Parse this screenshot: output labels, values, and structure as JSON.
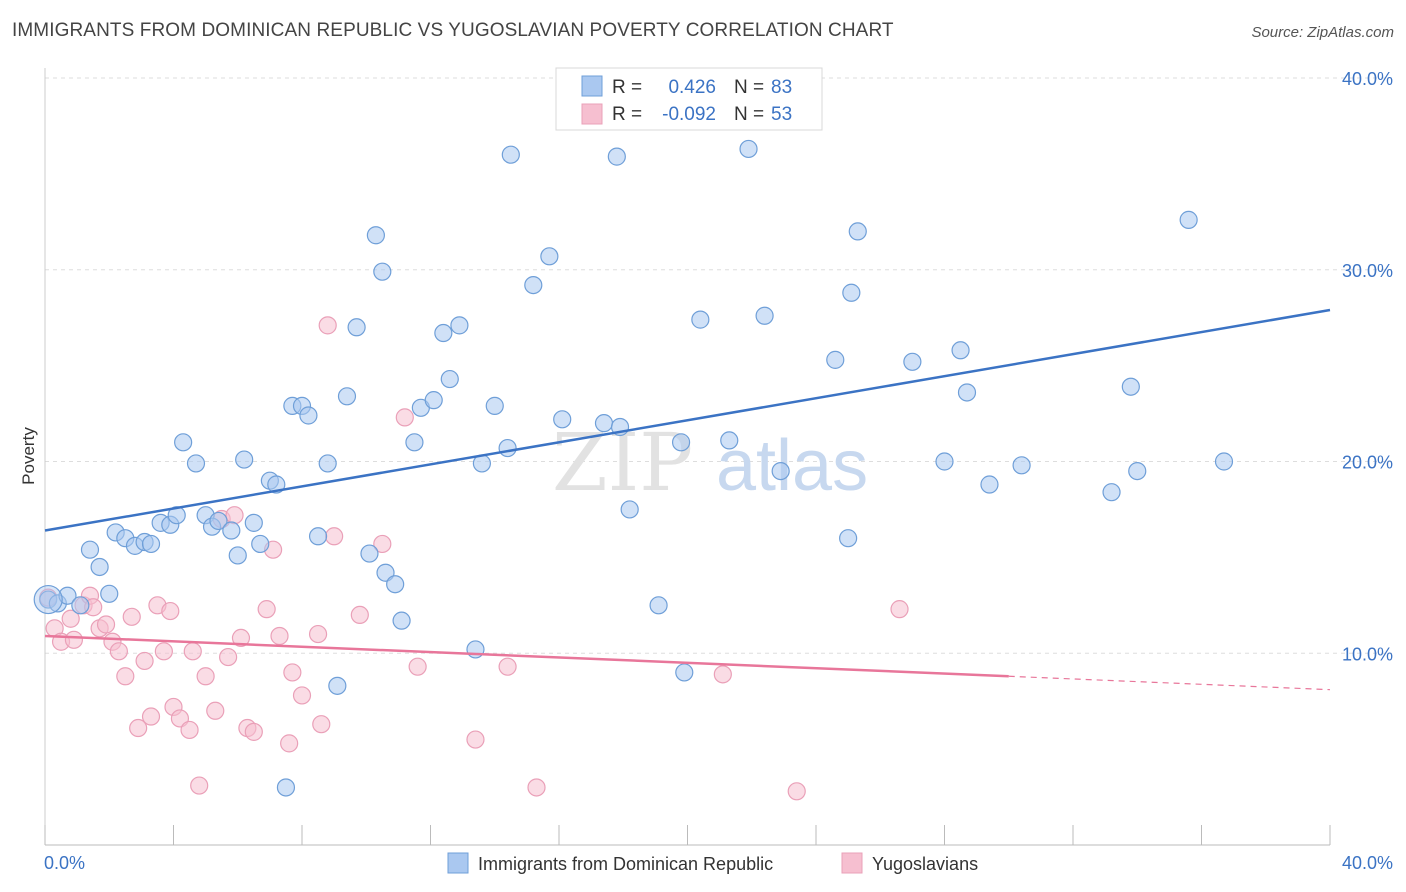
{
  "title": "IMMIGRANTS FROM DOMINICAN REPUBLIC VS YUGOSLAVIAN POVERTY CORRELATION CHART",
  "source": "Source: ZipAtlas.com",
  "watermark": {
    "zip": "ZIP",
    "atlas": "atlas"
  },
  "colors": {
    "blue": "#3b73c4",
    "blue_fill": "#aac8f0",
    "blue_stroke": "#6f9fd8",
    "pink": "#e8769a",
    "pink_fill": "#f6bfd0",
    "pink_stroke": "#eaa0b8",
    "grid": "#dddddd"
  },
  "legend": {
    "rows": [
      {
        "r_label": "R =",
        "r_value": "0.426",
        "n_label": "N =",
        "n_value": "83",
        "color": "blue"
      },
      {
        "r_label": "R =",
        "r_value": "-0.092",
        "n_label": "N =",
        "n_value": "53",
        "color": "pink"
      }
    ]
  },
  "bottom_legend": [
    "Immigrants from Dominican Republic",
    "Yugoslavians"
  ],
  "chart_data": {
    "type": "scatter",
    "xlabel": "",
    "ylabel": "Poverty",
    "xlim": [
      0,
      40
    ],
    "ylim": [
      0,
      40
    ],
    "x_tick_labels": [
      "0.0%",
      "40.0%"
    ],
    "y_ticks": [
      10,
      20,
      30,
      40
    ],
    "y_tick_labels": [
      "10.0%",
      "20.0%",
      "30.0%",
      "40.0%"
    ],
    "grid": true,
    "legend_position": "top-center",
    "series": [
      {
        "name": "Immigrants from Dominican Republic",
        "color": "#6f9fd8",
        "trend": {
          "x": [
            0,
            40
          ],
          "y": [
            16.4,
            27.9
          ]
        },
        "points": [
          [
            0.1,
            12.8
          ],
          [
            0.4,
            12.6
          ],
          [
            0.7,
            13.0
          ],
          [
            1.1,
            12.5
          ],
          [
            1.4,
            15.4
          ],
          [
            1.7,
            14.5
          ],
          [
            2.0,
            13.1
          ],
          [
            2.2,
            16.3
          ],
          [
            2.5,
            16.0
          ],
          [
            2.8,
            15.6
          ],
          [
            3.1,
            15.8
          ],
          [
            3.3,
            15.7
          ],
          [
            3.6,
            16.8
          ],
          [
            3.9,
            16.7
          ],
          [
            4.1,
            17.2
          ],
          [
            4.3,
            21.0
          ],
          [
            4.7,
            19.9
          ],
          [
            5.0,
            17.2
          ],
          [
            5.2,
            16.6
          ],
          [
            5.4,
            16.9
          ],
          [
            5.8,
            16.4
          ],
          [
            6.0,
            15.1
          ],
          [
            6.2,
            20.1
          ],
          [
            6.5,
            16.8
          ],
          [
            6.7,
            15.7
          ],
          [
            7.0,
            19.0
          ],
          [
            7.2,
            18.8
          ],
          [
            7.5,
            3.0
          ],
          [
            7.7,
            22.9
          ],
          [
            8.0,
            22.9
          ],
          [
            8.2,
            22.4
          ],
          [
            8.5,
            16.1
          ],
          [
            8.8,
            19.9
          ],
          [
            9.1,
            8.3
          ],
          [
            9.4,
            23.4
          ],
          [
            9.7,
            27.0
          ],
          [
            10.1,
            15.2
          ],
          [
            10.3,
            31.8
          ],
          [
            10.6,
            14.2
          ],
          [
            10.9,
            13.6
          ],
          [
            10.5,
            29.9
          ],
          [
            11.1,
            11.7
          ],
          [
            11.5,
            21.0
          ],
          [
            11.7,
            22.8
          ],
          [
            12.1,
            23.2
          ],
          [
            12.4,
            26.7
          ],
          [
            12.6,
            24.3
          ],
          [
            12.9,
            27.1
          ],
          [
            13.4,
            10.2
          ],
          [
            13.6,
            19.9
          ],
          [
            14.0,
            22.9
          ],
          [
            14.4,
            20.7
          ],
          [
            14.5,
            36.0
          ],
          [
            15.2,
            29.2
          ],
          [
            15.7,
            30.7
          ],
          [
            16.1,
            22.2
          ],
          [
            17.4,
            22.0
          ],
          [
            17.9,
            21.8
          ],
          [
            17.8,
            35.9
          ],
          [
            18.2,
            17.5
          ],
          [
            19.1,
            12.5
          ],
          [
            19.9,
            9.0
          ],
          [
            19.8,
            21.0
          ],
          [
            20.4,
            27.4
          ],
          [
            21.3,
            21.1
          ],
          [
            21.9,
            36.3
          ],
          [
            22.4,
            27.6
          ],
          [
            22.9,
            19.5
          ],
          [
            24.6,
            25.3
          ],
          [
            25.0,
            16.0
          ],
          [
            25.3,
            32.0
          ],
          [
            25.1,
            28.8
          ],
          [
            27.0,
            25.2
          ],
          [
            28.0,
            20.0
          ],
          [
            28.5,
            25.8
          ],
          [
            28.7,
            23.6
          ],
          [
            29.4,
            18.8
          ],
          [
            30.4,
            19.8
          ],
          [
            33.2,
            18.4
          ],
          [
            33.8,
            23.9
          ],
          [
            34.0,
            19.5
          ],
          [
            35.6,
            32.6
          ],
          [
            36.7,
            20.0
          ]
        ]
      },
      {
        "name": "Yugoslavians",
        "color": "#eaa0b8",
        "trend": {
          "x": [
            0,
            30
          ],
          "y": [
            10.9,
            8.8
          ]
        },
        "trend_dashed": {
          "x": [
            30,
            40
          ],
          "y": [
            8.8,
            8.1
          ]
        },
        "points": [
          [
            0.1,
            12.9
          ],
          [
            0.3,
            11.3
          ],
          [
            0.5,
            10.6
          ],
          [
            0.8,
            11.8
          ],
          [
            0.9,
            10.7
          ],
          [
            1.2,
            12.5
          ],
          [
            1.4,
            13.0
          ],
          [
            1.5,
            12.4
          ],
          [
            1.7,
            11.3
          ],
          [
            1.9,
            11.5
          ],
          [
            2.1,
            10.6
          ],
          [
            2.3,
            10.1
          ],
          [
            2.5,
            8.8
          ],
          [
            2.7,
            11.9
          ],
          [
            2.9,
            6.1
          ],
          [
            3.1,
            9.6
          ],
          [
            3.3,
            6.7
          ],
          [
            3.5,
            12.5
          ],
          [
            3.7,
            10.1
          ],
          [
            3.9,
            12.2
          ],
          [
            4.0,
            7.2
          ],
          [
            4.2,
            6.6
          ],
          [
            4.5,
            6.0
          ],
          [
            4.6,
            10.1
          ],
          [
            4.8,
            3.1
          ],
          [
            5.0,
            8.8
          ],
          [
            5.3,
            7.0
          ],
          [
            5.5,
            17.0
          ],
          [
            5.7,
            9.8
          ],
          [
            5.9,
            17.2
          ],
          [
            6.1,
            10.8
          ],
          [
            6.3,
            6.1
          ],
          [
            6.5,
            5.9
          ],
          [
            6.9,
            12.3
          ],
          [
            7.1,
            15.4
          ],
          [
            7.3,
            10.9
          ],
          [
            7.6,
            5.3
          ],
          [
            7.7,
            9.0
          ],
          [
            8.0,
            7.8
          ],
          [
            8.5,
            11.0
          ],
          [
            8.6,
            6.3
          ],
          [
            8.8,
            27.1
          ],
          [
            9.0,
            16.1
          ],
          [
            9.8,
            12.0
          ],
          [
            10.5,
            15.7
          ],
          [
            11.2,
            22.3
          ],
          [
            11.6,
            9.3
          ],
          [
            13.4,
            5.5
          ],
          [
            14.4,
            9.3
          ],
          [
            15.3,
            3.0
          ],
          [
            21.1,
            8.9
          ],
          [
            23.4,
            2.8
          ],
          [
            26.6,
            12.3
          ]
        ]
      }
    ]
  }
}
